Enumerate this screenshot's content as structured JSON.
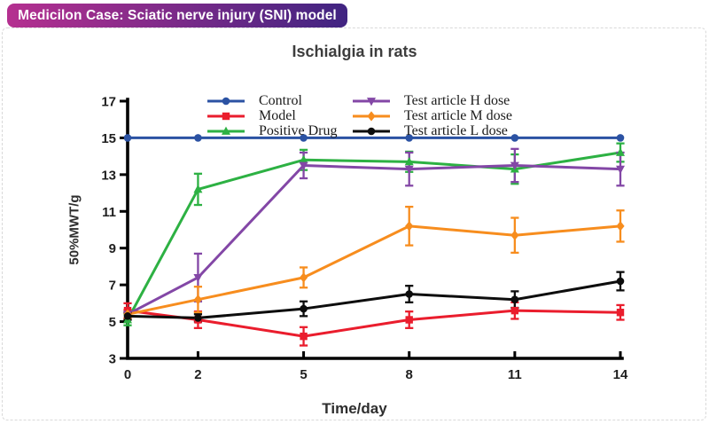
{
  "badge": {
    "label": "Medicilon Case: Sciatic nerve injury (SNI) model",
    "color_left": "#b53090",
    "color_right": "#402481"
  },
  "card": {
    "border_color": "#d9d9d9",
    "background": "#ffffff"
  },
  "chart_data": {
    "type": "line",
    "title": "Ischialgia in rats",
    "xlabel": "Time/day",
    "ylabel": "50%MWT/g",
    "x": [
      0,
      2,
      5,
      8,
      11,
      14
    ],
    "xlim": [
      0,
      14
    ],
    "ylim": [
      3,
      17
    ],
    "yticks": [
      3,
      5,
      7,
      9,
      11,
      13,
      15,
      17
    ],
    "grid": false,
    "error_bars": true,
    "legend_position": "top-inside-two-columns",
    "axis_color": "#000000",
    "tick_label_color": "#1f1f1f",
    "series": [
      {
        "name": "Control",
        "color": "#2b52a3",
        "marker": "circle",
        "values": [
          15,
          15,
          15,
          15,
          15,
          15
        ],
        "errors": [
          0,
          0,
          0,
          0,
          0,
          0
        ]
      },
      {
        "name": "Model",
        "color": "#ea1d2d",
        "marker": "square",
        "values": [
          5.6,
          5.1,
          4.2,
          5.1,
          5.6,
          5.5
        ],
        "errors": [
          0.4,
          0.45,
          0.5,
          0.45,
          0.45,
          0.4
        ]
      },
      {
        "name": "Positive Drug",
        "color": "#2db143",
        "marker": "triangle-up",
        "values": [
          5.1,
          12.2,
          13.8,
          13.7,
          13.3,
          14.2
        ],
        "errors": [
          0.3,
          0.85,
          0.55,
          0.55,
          0.8,
          0.5
        ]
      },
      {
        "name": "Test article H dose",
        "color": "#8347a6",
        "marker": "triangle-down",
        "values": [
          5.4,
          7.4,
          13.5,
          13.3,
          13.5,
          13.3
        ],
        "errors": [
          0.25,
          1.3,
          0.7,
          0.9,
          0.9,
          0.9
        ]
      },
      {
        "name": "Test article M dose",
        "color": "#f78d1e",
        "marker": "diamond",
        "values": [
          5.4,
          6.2,
          7.4,
          10.2,
          9.7,
          10.2
        ],
        "errors": [
          0.25,
          0.7,
          0.55,
          1.05,
          0.95,
          0.85
        ]
      },
      {
        "name": "Test article L dose",
        "color": "#0d0d0d",
        "marker": "circle",
        "values": [
          5.3,
          5.2,
          5.7,
          6.5,
          6.2,
          7.2
        ],
        "errors": [
          0.2,
          0.2,
          0.4,
          0.45,
          0.45,
          0.5
        ]
      }
    ]
  }
}
